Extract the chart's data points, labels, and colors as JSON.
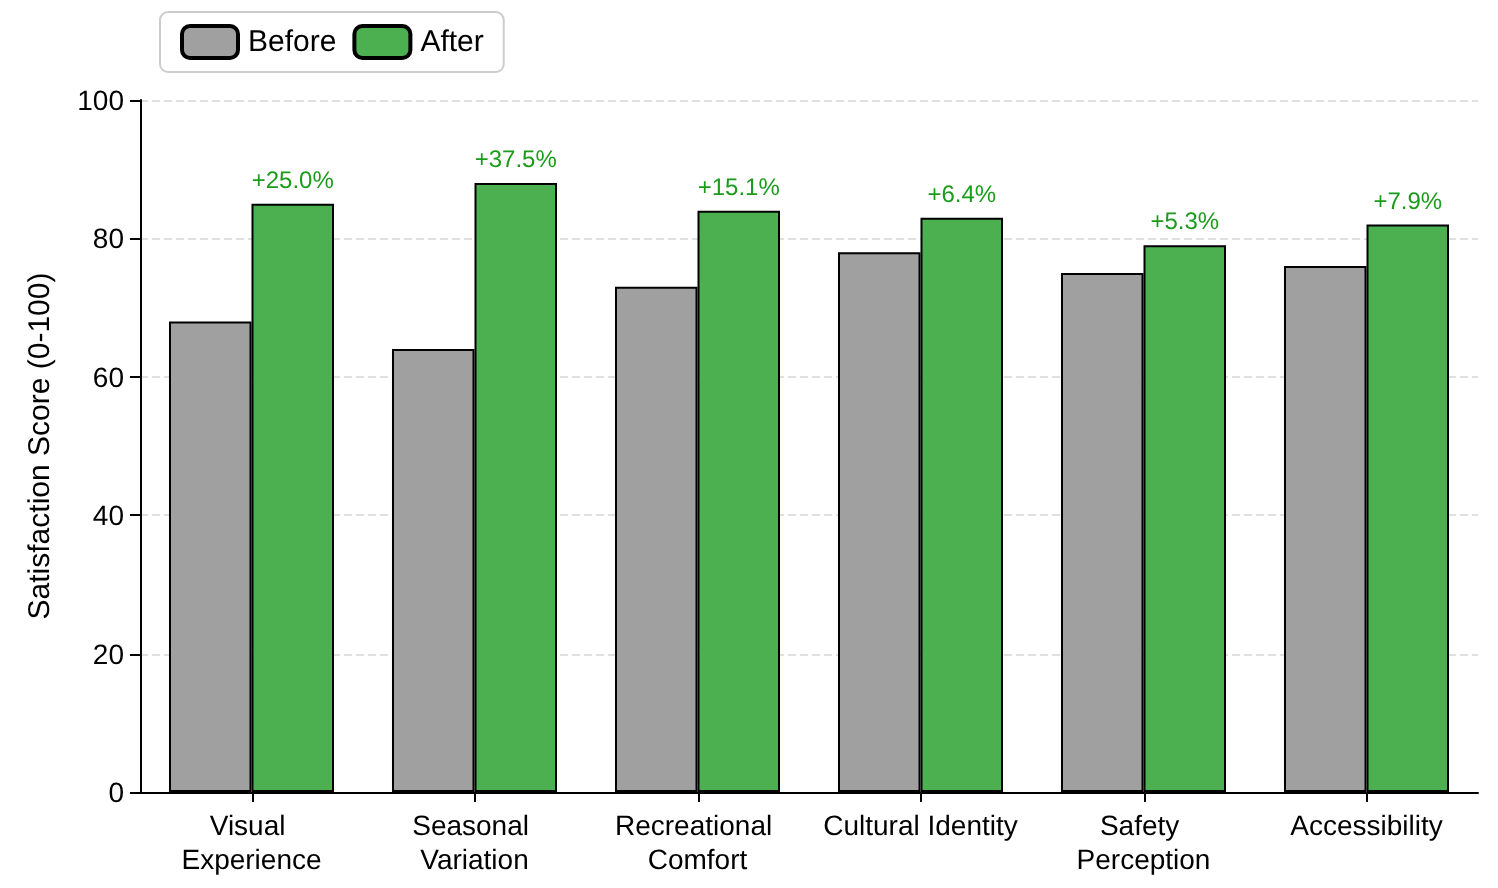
{
  "chart_data": {
    "type": "bar",
    "ylabel": "Satisfaction Score (0-100)",
    "categories": [
      "Visual Experience",
      "Seasonal Variation",
      "Recreational Comfort",
      "Cultural Identity",
      "Safety Perception",
      "Accessibility"
    ],
    "series": [
      {
        "name": "Before",
        "color": "#a0a0a0",
        "values": [
          68,
          64,
          73,
          78,
          75,
          76
        ]
      },
      {
        "name": "After",
        "color": "#4caf50",
        "values": [
          85,
          88,
          84,
          83,
          79,
          82
        ]
      }
    ],
    "ylim": [
      0,
      100
    ],
    "yticks": [
      0,
      20,
      40,
      60,
      80,
      100
    ],
    "grid": "y",
    "legend": "top left",
    "annotations": [
      {
        "text": "+25.0%",
        "x": "Visual Experience",
        "y": 85
      },
      {
        "text": "+37.5%",
        "x": "Seasonal Variation",
        "y": 88
      },
      {
        "text": "+15.1%",
        "x": "Recreational Comfort",
        "y": 84
      },
      {
        "text": "+6.4%",
        "x": "Cultural Identity",
        "y": 83
      },
      {
        "text": "+5.3%",
        "x": "Safety Perception",
        "y": 79
      },
      {
        "text": "+7.9%",
        "x": "Accessibility",
        "y": 82
      }
    ]
  }
}
